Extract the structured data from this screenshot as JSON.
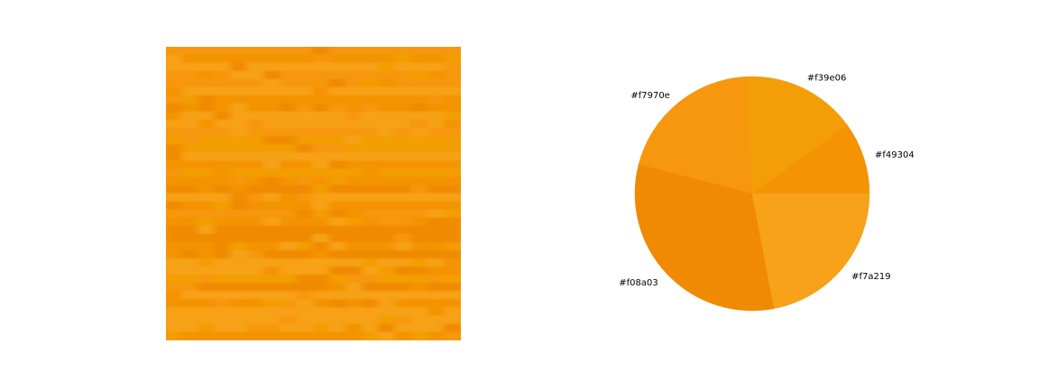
{
  "chart_data": [
    {
      "type": "heatmap",
      "palette": [
        "#f49304",
        "#f39e06",
        "#f7970e",
        "#f08a03",
        "#f7a219"
      ]
    },
    {
      "type": "pie",
      "labels": [
        "#f49304",
        "#f39e06",
        "#f7970e",
        "#f08a03",
        "#f7a219"
      ],
      "values": [
        10,
        16,
        20,
        32,
        22
      ],
      "colors": [
        "#f49304",
        "#f39e06",
        "#f7970e",
        "#f08a03",
        "#f7a219"
      ],
      "start_angle": 0,
      "direction": "counterclockwise"
    }
  ]
}
